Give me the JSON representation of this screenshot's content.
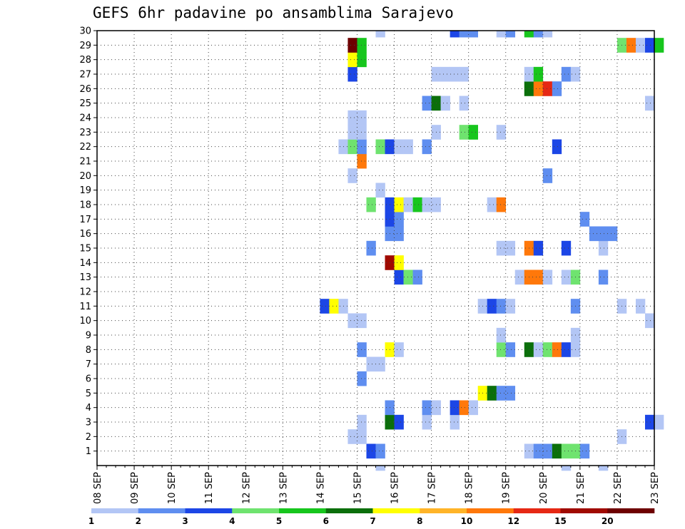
{
  "chart_data": {
    "type": "heatmap",
    "title": "GEFS 6hr padavine po ansamblima Sarajevo",
    "xlabel": "",
    "ylabel": "",
    "x_tick_labels": [
      "08 SEP",
      "09 SEP",
      "10 SEP",
      "11 SEP",
      "12 SEP",
      "13 SEP",
      "14 SEP",
      "15 SEP",
      "16 SEP",
      "17 SEP",
      "18 SEP",
      "19 SEP",
      "20 SEP",
      "21 SEP",
      "22 SEP",
      "23 SEP"
    ],
    "y_tick_labels": [
      "1",
      "2",
      "3",
      "4",
      "5",
      "6",
      "7",
      "8",
      "9",
      "10",
      "11",
      "12",
      "13",
      "14",
      "15",
      "16",
      "17",
      "18",
      "19",
      "20",
      "21",
      "22",
      "23",
      "24",
      "25",
      "26",
      "27",
      "28",
      "29",
      "30"
    ],
    "x_units": "6-hour steps since 08 SEP 00z",
    "ylim": [
      0,
      30
    ],
    "grid": true,
    "legend": {
      "placement": "bottom",
      "labels": [
        "1",
        "2",
        "3",
        "4",
        "5",
        "6",
        "7",
        "8",
        "10",
        "12",
        "15",
        "20"
      ],
      "colors": [
        "#b3c6f5",
        "#5f8ef0",
        "#1c46e6",
        "#6fe36f",
        "#17c61d",
        "#0b6f0b",
        "#ffff00",
        "#ffb428",
        "#ff780a",
        "#e62814",
        "#a00a00",
        "#6e0000"
      ]
    },
    "cells": [
      [
        29,
        1,
        3
      ],
      [
        30,
        1,
        2
      ],
      [
        46,
        1,
        1
      ],
      [
        47,
        1,
        2
      ],
      [
        48,
        1,
        2
      ],
      [
        49,
        1,
        6
      ],
      [
        50,
        1,
        4
      ],
      [
        51,
        1,
        4
      ],
      [
        52,
        1,
        2
      ],
      [
        27,
        2,
        1
      ],
      [
        28,
        2,
        1
      ],
      [
        56,
        2,
        1
      ],
      [
        28,
        3,
        1
      ],
      [
        31,
        3,
        6
      ],
      [
        32,
        3,
        3
      ],
      [
        35,
        3,
        1
      ],
      [
        38,
        3,
        1
      ],
      [
        59,
        3,
        3
      ],
      [
        60,
        3,
        1
      ],
      [
        31,
        4,
        2
      ],
      [
        35,
        4,
        2
      ],
      [
        36,
        4,
        1
      ],
      [
        38,
        4,
        3
      ],
      [
        39,
        4,
        9
      ],
      [
        40,
        4,
        1
      ],
      [
        41,
        5,
        7
      ],
      [
        42,
        5,
        6
      ],
      [
        43,
        5,
        2
      ],
      [
        44,
        5,
        2
      ],
      [
        28,
        6,
        2
      ],
      [
        29,
        7,
        1
      ],
      [
        30,
        7,
        1
      ],
      [
        28,
        8,
        2
      ],
      [
        31,
        8,
        7
      ],
      [
        32,
        8,
        1
      ],
      [
        43,
        8,
        4
      ],
      [
        44,
        8,
        2
      ],
      [
        46,
        8,
        6
      ],
      [
        47,
        8,
        1
      ],
      [
        48,
        8,
        4
      ],
      [
        49,
        8,
        9
      ],
      [
        50,
        8,
        3
      ],
      [
        51,
        8,
        1
      ],
      [
        43,
        9,
        1
      ],
      [
        51,
        9,
        1
      ],
      [
        27,
        10,
        1
      ],
      [
        28,
        10,
        1
      ],
      [
        59,
        10,
        1
      ],
      [
        24,
        11,
        3
      ],
      [
        25,
        11,
        7
      ],
      [
        26,
        11,
        1
      ],
      [
        41,
        11,
        1
      ],
      [
        42,
        11,
        3
      ],
      [
        43,
        11,
        2
      ],
      [
        44,
        11,
        1
      ],
      [
        51,
        11,
        2
      ],
      [
        56,
        11,
        1
      ],
      [
        58,
        11,
        1
      ],
      [
        32,
        13,
        3
      ],
      [
        33,
        13,
        4
      ],
      [
        34,
        13,
        2
      ],
      [
        45,
        13,
        1
      ],
      [
        46,
        13,
        9
      ],
      [
        47,
        13,
        9
      ],
      [
        48,
        13,
        1
      ],
      [
        50,
        13,
        1
      ],
      [
        51,
        13,
        4
      ],
      [
        54,
        13,
        2
      ],
      [
        31,
        14,
        11
      ],
      [
        32,
        14,
        7
      ],
      [
        29,
        15,
        2
      ],
      [
        43,
        15,
        1
      ],
      [
        44,
        15,
        1
      ],
      [
        46,
        15,
        9
      ],
      [
        47,
        15,
        3
      ],
      [
        50,
        15,
        3
      ],
      [
        54,
        15,
        1
      ],
      [
        31,
        16,
        2
      ],
      [
        32,
        16,
        2
      ],
      [
        53,
        16,
        2
      ],
      [
        54,
        16,
        2
      ],
      [
        55,
        16,
        2
      ],
      [
        31,
        17,
        3
      ],
      [
        32,
        17,
        2
      ],
      [
        52,
        17,
        2
      ],
      [
        29,
        18,
        4
      ],
      [
        31,
        18,
        3
      ],
      [
        32,
        18,
        7
      ],
      [
        33,
        18,
        1
      ],
      [
        34,
        18,
        5
      ],
      [
        35,
        18,
        1
      ],
      [
        36,
        18,
        1
      ],
      [
        42,
        18,
        1
      ],
      [
        43,
        18,
        9
      ],
      [
        30,
        19,
        1
      ],
      [
        27,
        20,
        1
      ],
      [
        48,
        20,
        2
      ],
      [
        28,
        21,
        9
      ],
      [
        26,
        22,
        1
      ],
      [
        27,
        22,
        4
      ],
      [
        28,
        22,
        2
      ],
      [
        30,
        22,
        4
      ],
      [
        31,
        22,
        3
      ],
      [
        32,
        22,
        1
      ],
      [
        33,
        22,
        1
      ],
      [
        35,
        22,
        2
      ],
      [
        49,
        22,
        3
      ],
      [
        27,
        23,
        1
      ],
      [
        28,
        23,
        1
      ],
      [
        36,
        23,
        1
      ],
      [
        39,
        23,
        4
      ],
      [
        40,
        23,
        5
      ],
      [
        43,
        23,
        1
      ],
      [
        27,
        24,
        1
      ],
      [
        28,
        24,
        1
      ],
      [
        35,
        25,
        2
      ],
      [
        36,
        25,
        6
      ],
      [
        37,
        25,
        1
      ],
      [
        39,
        25,
        1
      ],
      [
        59,
        25,
        1
      ],
      [
        46,
        26,
        6
      ],
      [
        47,
        26,
        9
      ],
      [
        48,
        26,
        10
      ],
      [
        49,
        26,
        2
      ],
      [
        27,
        27,
        3
      ],
      [
        36,
        27,
        1
      ],
      [
        37,
        27,
        1
      ],
      [
        38,
        27,
        1
      ],
      [
        39,
        27,
        1
      ],
      [
        46,
        27,
        1
      ],
      [
        47,
        27,
        5
      ],
      [
        50,
        27,
        2
      ],
      [
        51,
        27,
        1
      ],
      [
        27,
        28,
        7
      ],
      [
        28,
        28,
        5
      ],
      [
        27,
        29,
        12
      ],
      [
        28,
        29,
        5
      ],
      [
        56,
        29,
        4
      ],
      [
        57,
        29,
        9
      ],
      [
        58,
        29,
        1
      ],
      [
        59,
        29,
        3
      ],
      [
        60,
        29,
        5
      ],
      [
        30,
        30,
        1
      ],
      [
        38,
        30,
        3
      ],
      [
        39,
        30,
        2
      ],
      [
        40,
        30,
        2
      ],
      [
        43,
        30,
        1
      ],
      [
        44,
        30,
        2
      ],
      [
        46,
        30,
        5
      ],
      [
        47,
        30,
        2
      ],
      [
        48,
        30,
        1
      ],
      [
        30,
        0,
        1
      ],
      [
        50,
        0,
        1
      ],
      [
        54,
        0,
        1
      ]
    ]
  }
}
